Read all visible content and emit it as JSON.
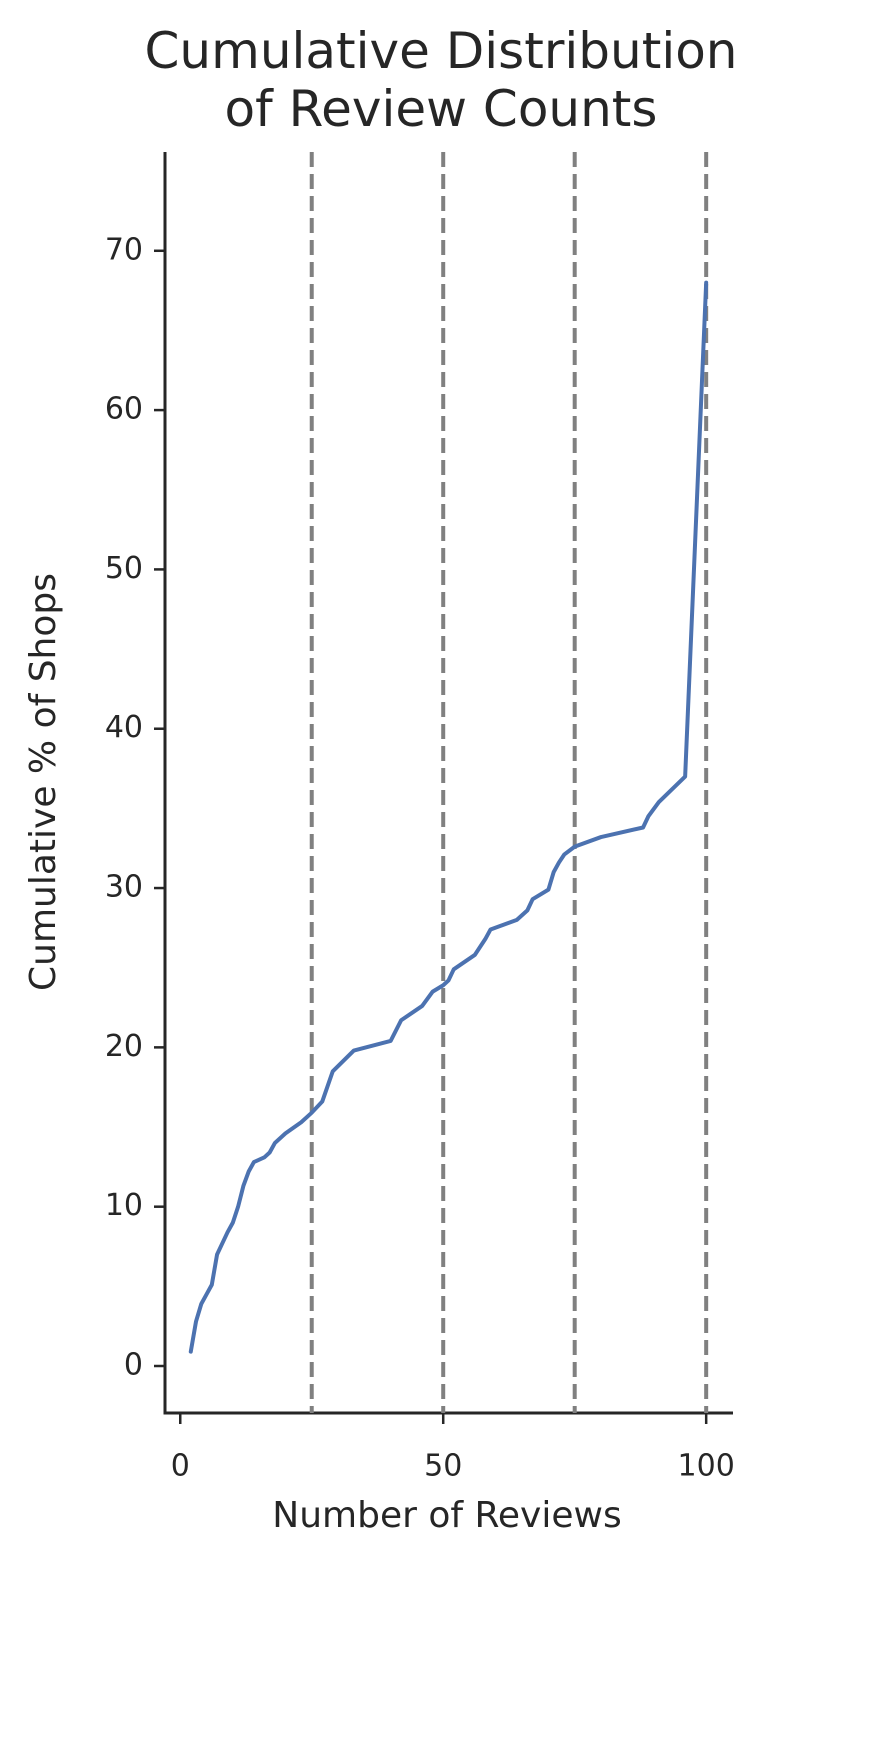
{
  "chart_data": {
    "type": "line",
    "title": "Cumulative Distribution\nof Review Counts",
    "xlabel": "Number of Reviews",
    "ylabel": "Cumulative % of Shops",
    "x": [
      2,
      3,
      4,
      5,
      6,
      7,
      8,
      9,
      10,
      11,
      12,
      13,
      14,
      16,
      17,
      18,
      20,
      23,
      25,
      27,
      29,
      33,
      40,
      42,
      46,
      48,
      50,
      51,
      52,
      56,
      58,
      59,
      64,
      66,
      67,
      70,
      71,
      72,
      73,
      75,
      80,
      88,
      89,
      91,
      96,
      100
    ],
    "values": [
      0.9,
      2.8,
      3.9,
      4.5,
      5.1,
      7.0,
      7.7,
      8.4,
      9.0,
      10.0,
      11.3,
      12.2,
      12.8,
      13.1,
      13.4,
      14.0,
      14.6,
      15.3,
      15.9,
      16.6,
      18.5,
      19.8,
      20.4,
      21.7,
      22.6,
      23.5,
      23.9,
      24.2,
      24.9,
      25.8,
      26.8,
      27.4,
      28.0,
      28.6,
      29.3,
      29.9,
      31.0,
      31.6,
      32.1,
      32.6,
      33.2,
      33.8,
      34.5,
      35.4,
      37.0,
      68.0
    ],
    "color": "#4c72b0",
    "vlines": [
      25,
      50,
      75,
      100
    ],
    "vline_color": "#808080",
    "xlim": [
      -2.9,
      105.1
    ],
    "ylim": [
      -2.95,
      76.2
    ],
    "xticks": [
      0,
      50,
      100
    ],
    "yticks": [
      0,
      10,
      20,
      30,
      40,
      50,
      60,
      70
    ]
  }
}
